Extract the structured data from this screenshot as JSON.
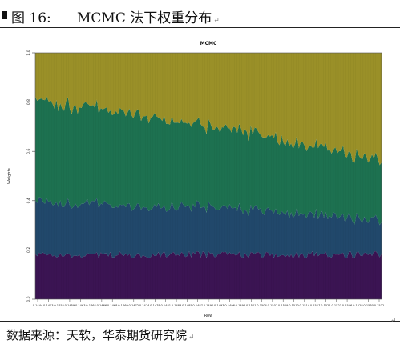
{
  "caption": {
    "label": "图 16:",
    "title": "MCMC 法下权重分布",
    "mark": "↵"
  },
  "footer": {
    "source": "数据来源：天软，华泰期货研究院",
    "mark": "↵"
  },
  "page_mark": "↵",
  "chart_data": {
    "type": "area",
    "stacked": true,
    "title": "MCMC",
    "xlabel": "Row",
    "ylabel": "Weights",
    "ylim": [
      0,
      1.0
    ],
    "y_ticks": [
      "0.0",
      "0.2",
      "0.4",
      "0.6",
      "0.8",
      "1.0"
    ],
    "x_ticks": [
      "0.1444",
      "0.1453",
      "0.1455",
      "0.1459",
      "0.1463",
      "0.1464",
      "0.1466",
      "0.1468",
      "0.1469",
      "0.1472",
      "0.1474",
      "0.1478",
      "0.1481",
      "0.1483",
      "0.1485",
      "0.1487",
      "0.1490",
      "0.1493",
      "0.1496",
      "0.1498",
      "0.1501",
      "0.1504",
      "0.1507",
      "0.1509",
      "0.1510",
      "0.1514",
      "0.1517",
      "0.1521",
      "0.1523",
      "0.1526",
      "0.1528",
      "0.1530",
      "0.1532"
    ],
    "grid": false,
    "legend": "none",
    "x": [
      0,
      0.25,
      0.5,
      0.75,
      1.0
    ],
    "series": [
      {
        "color": "#3b1453",
        "values": [
          0.18,
          0.18,
          0.18,
          0.18,
          0.18
        ]
      },
      {
        "color": "#21486b",
        "values": [
          0.22,
          0.2,
          0.19,
          0.17,
          0.14
        ]
      },
      {
        "color": "#1d7150",
        "values": [
          0.41,
          0.38,
          0.33,
          0.29,
          0.24
        ]
      },
      {
        "color": "#9a9028",
        "values": [
          0.19,
          0.24,
          0.3,
          0.36,
          0.44
        ]
      }
    ]
  }
}
